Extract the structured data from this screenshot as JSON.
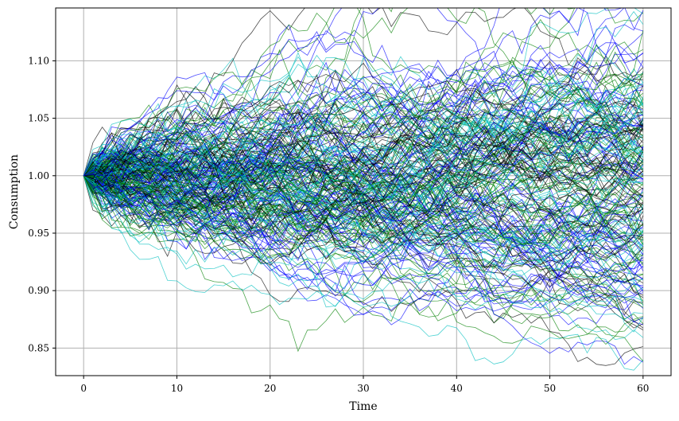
{
  "chart_data": {
    "type": "line",
    "title": "",
    "xlabel": "Time",
    "ylabel": "Consumption",
    "xlim": [
      -3,
      63
    ],
    "ylim": [
      0.826,
      1.146
    ],
    "x_ticks": [
      0,
      10,
      20,
      30,
      40,
      50,
      60
    ],
    "x_tick_labels": [
      "0",
      "10",
      "20",
      "30",
      "40",
      "50",
      "60"
    ],
    "y_ticks": [
      0.85,
      0.9,
      0.95,
      1.0,
      1.05,
      1.1
    ],
    "y_tick_labels": [
      "0.85",
      "0.90",
      "0.95",
      "1.00",
      "1.05",
      "1.10"
    ],
    "grid": true,
    "legend": "none",
    "series_colors": [
      "#0000ff",
      "#008000",
      "#000000",
      "#00bfbf"
    ],
    "x_start": 0,
    "x_end": 60,
    "start_value": 1.0,
    "num_paths_per_color": 60,
    "line_opacity": 0.7,
    "approx_path_range_at_end": [
      0.842,
      1.13
    ]
  }
}
